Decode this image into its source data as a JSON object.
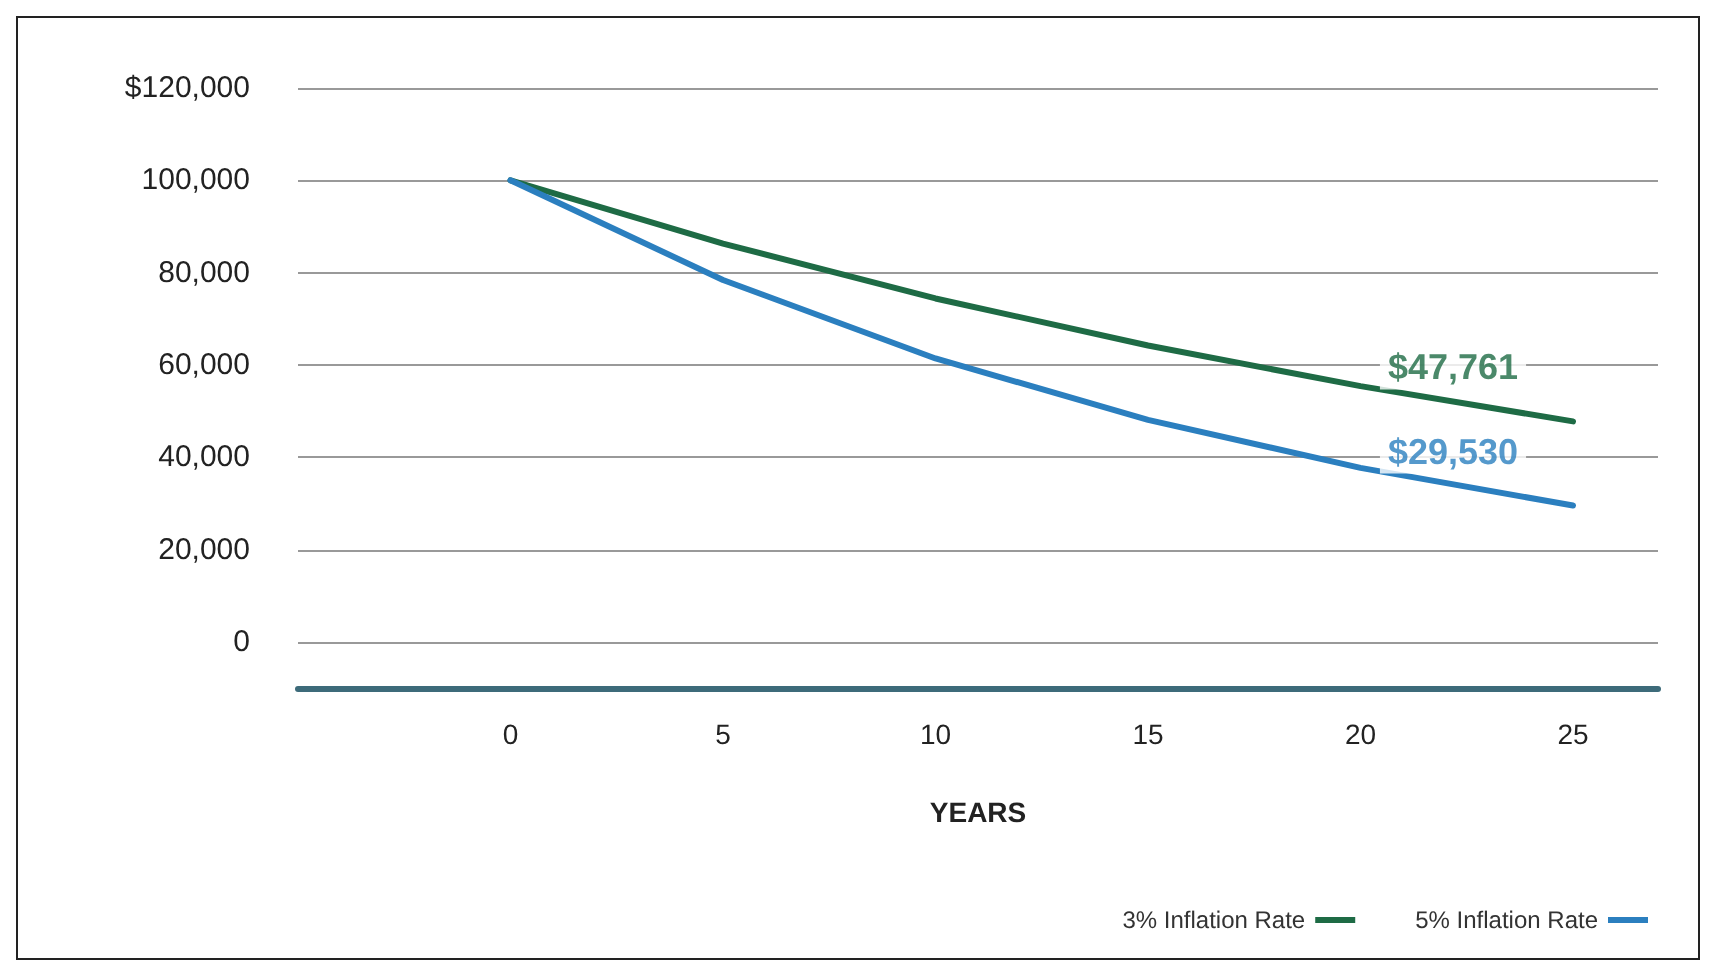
{
  "chart_data": {
    "type": "line",
    "xlabel": "YEARS",
    "x": [
      0,
      5,
      10,
      15,
      20,
      25
    ],
    "series": [
      {
        "name": "3% Inflation Rate",
        "color": "#1e6b45",
        "values": [
          100000,
          86300,
          74400,
          64200,
          55400,
          47761
        ]
      },
      {
        "name": "5% Inflation Rate",
        "color": "#2b7fbf",
        "values": [
          100000,
          78400,
          61400,
          48100,
          37700,
          29530
        ]
      }
    ],
    "annotations": [
      {
        "text": "$47,761",
        "x": 25,
        "y": 47761
      },
      {
        "text": "$29,530",
        "x": 25,
        "y": 29530
      }
    ],
    "xlim": [
      -5,
      27
    ],
    "xticks": [
      0,
      5,
      10,
      15,
      20,
      25
    ],
    "ylim": [
      -10000,
      120000
    ],
    "yticks": [
      0,
      {
        "value": 20000,
        "label": "20,000"
      },
      {
        "value": 40000,
        "label": "40,000"
      },
      {
        "value": 60000,
        "label": "60,000"
      },
      {
        "value": 80000,
        "label": "80,000"
      },
      {
        "value": 100000,
        "label": "100,000"
      },
      {
        "value": 120000,
        "label": "$120,000"
      }
    ],
    "grid": "y",
    "legend": "bottom right",
    "marker": "none",
    "line_style": "solid"
  }
}
